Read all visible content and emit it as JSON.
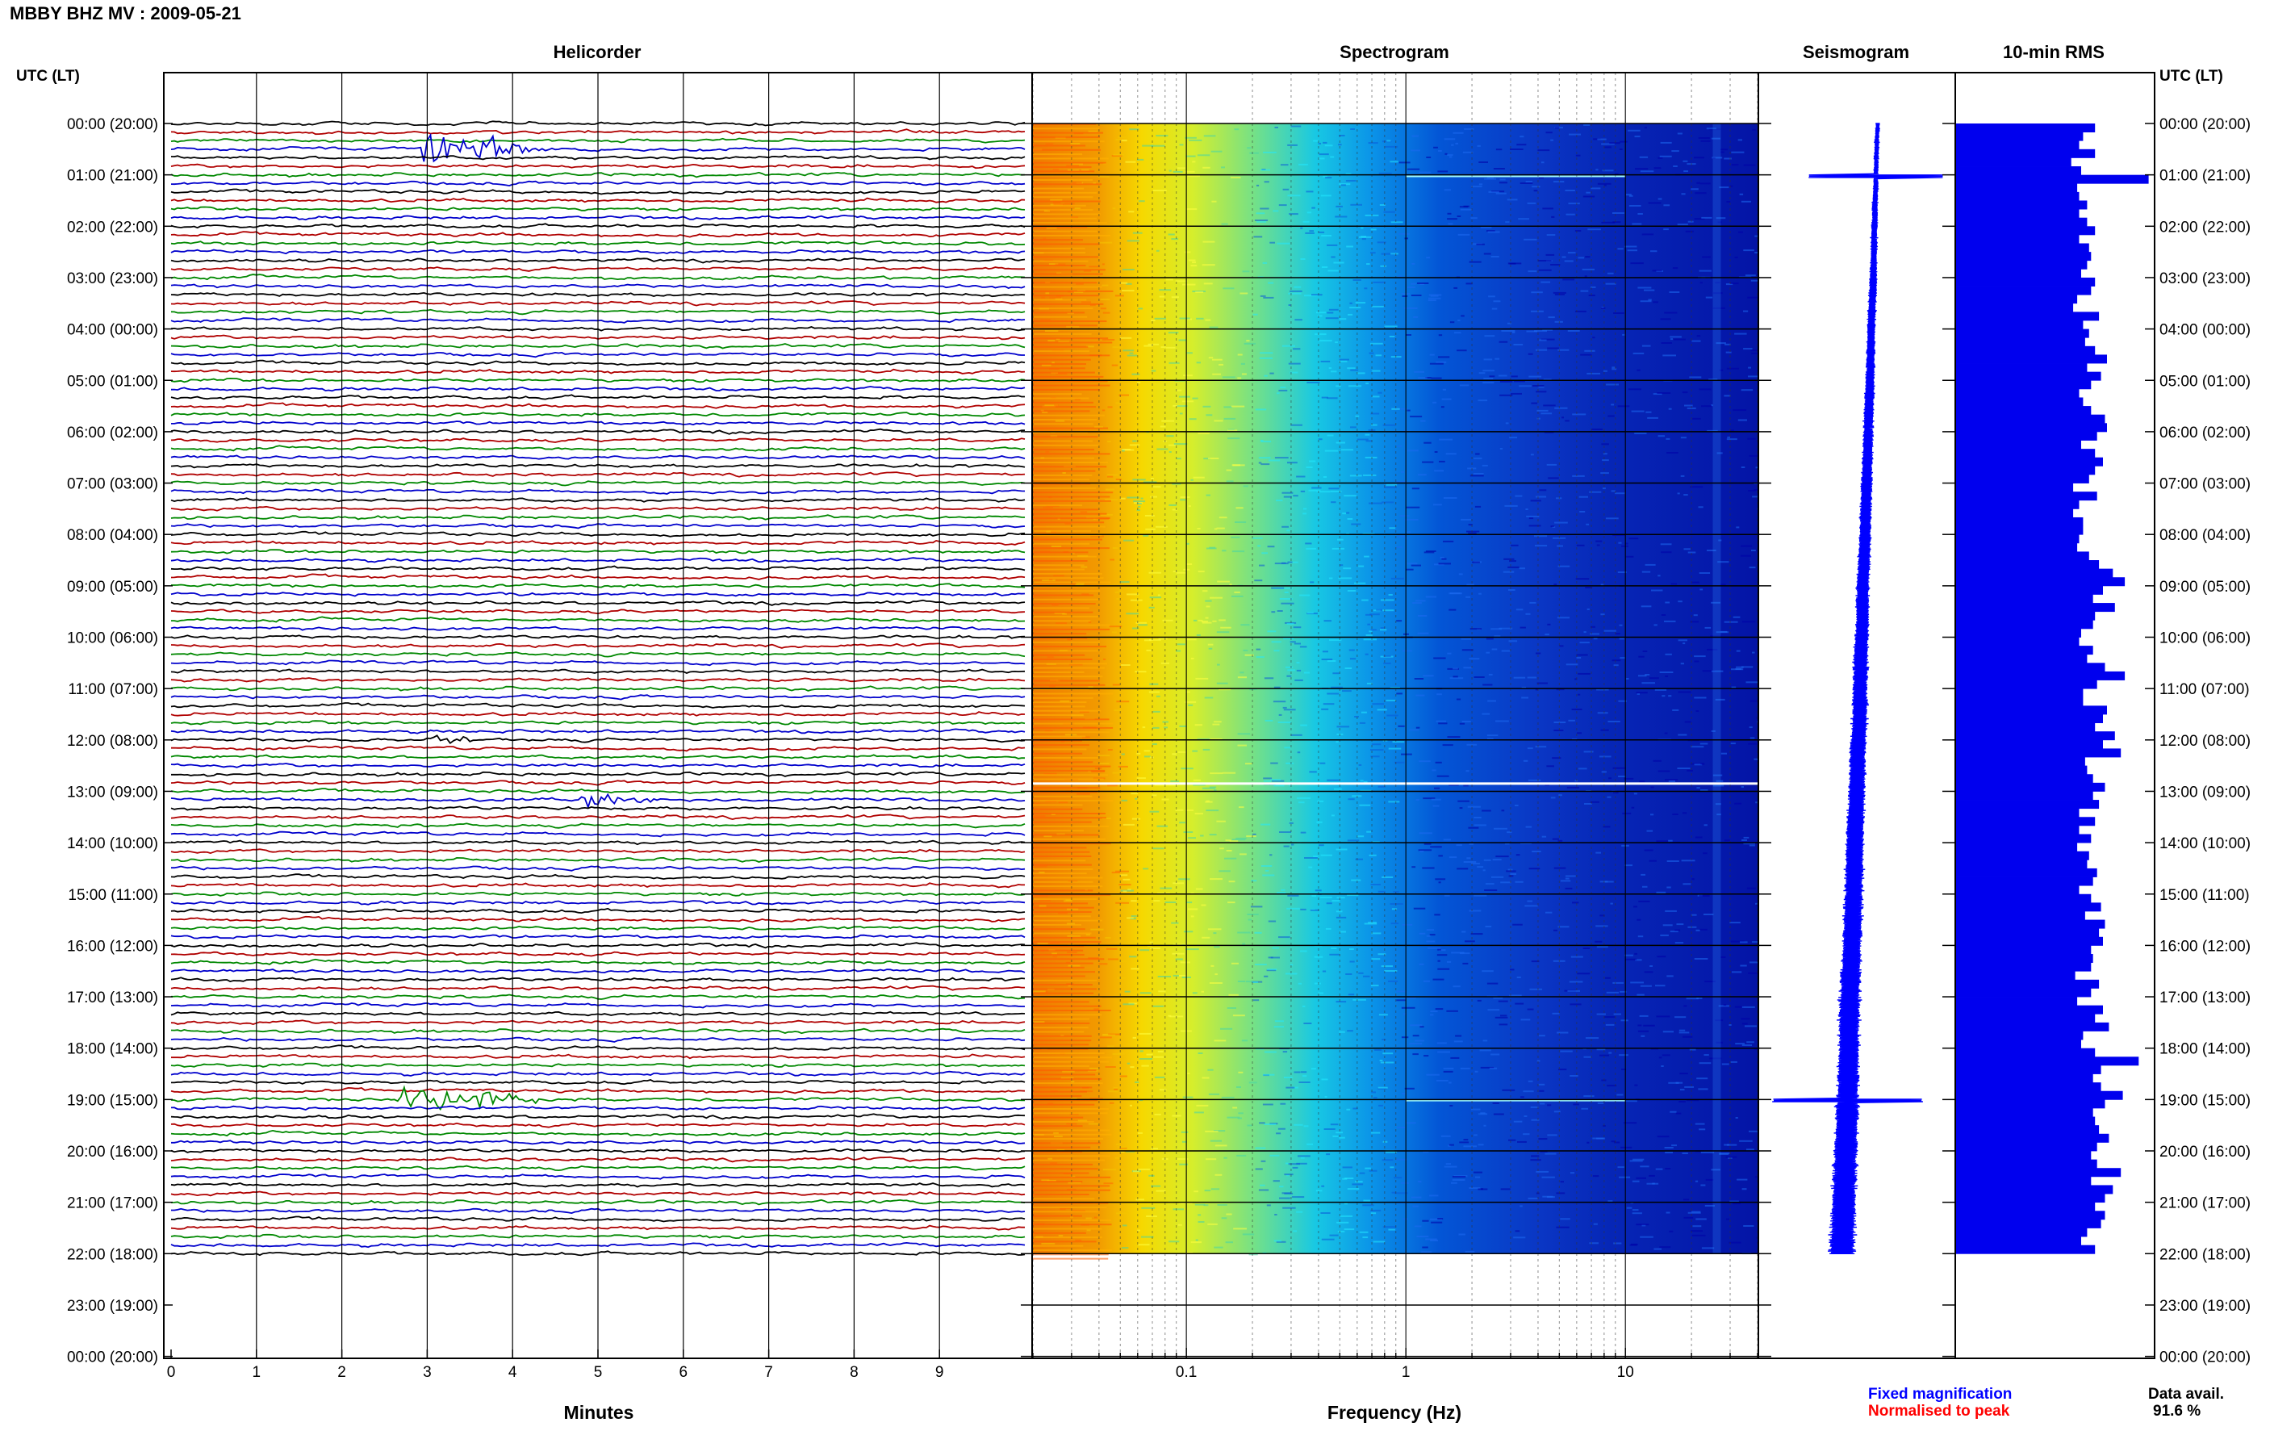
{
  "header": {
    "title": "MBBY BHZ MV : 2009-05-21",
    "utc_label_left": "UTC (LT)",
    "utc_label_right": "UTC (LT)"
  },
  "panels": {
    "helicorder_title": "Helicorder",
    "spectrogram_title": "Spectrogram",
    "seismogram_title": "Seismogram",
    "rms_title": "10-min RMS"
  },
  "footer": {
    "minutes_label": "Minutes",
    "frequency_label": "Frequency (Hz)",
    "fixed_magnification": "Fixed magnification",
    "normalised_to_peak": "Normalised to peak",
    "data_avail_label": "Data avail.",
    "data_avail_value": "91.6 %"
  },
  "colors": {
    "trace_cycle": [
      "#000000",
      "#b00000",
      "#008800",
      "#0000cc"
    ],
    "fixed_magnification": "#0000ff",
    "normalised_to_peak": "#ff0000",
    "seismogram": "#0000ff",
    "rms_bar": "#0000ee",
    "spectro_low": "#e85a00",
    "spectro_high": "#0010b0"
  },
  "chart_data": [
    {
      "type": "line",
      "name": "helicorder",
      "xlabel": "Minutes",
      "x_ticks": [
        "0",
        "1",
        "2",
        "3",
        "4",
        "5",
        "6",
        "7",
        "8",
        "9"
      ],
      "xlim": [
        0,
        10
      ],
      "hour_labels": [
        "00:00 (20:00)",
        "01:00 (21:00)",
        "02:00 (22:00)",
        "03:00 (23:00)",
        "04:00 (00:00)",
        "05:00 (01:00)",
        "06:00 (02:00)",
        "07:00 (03:00)",
        "08:00 (04:00)",
        "09:00 (05:00)",
        "10:00 (06:00)",
        "11:00 (07:00)",
        "12:00 (08:00)",
        "13:00 (09:00)",
        "14:00 (10:00)",
        "15:00 (11:00)",
        "16:00 (12:00)",
        "17:00 (13:00)",
        "18:00 (14:00)",
        "19:00 (15:00)",
        "20:00 (16:00)",
        "21:00 (17:00)",
        "22:00 (18:00)",
        "23:00 (19:00)",
        "00:00 (20:00)"
      ],
      "traces_per_hour": 6,
      "data_end_hour": 22,
      "events": [
        {
          "hour": 0.5,
          "minute_start": 2.9,
          "minute_end": 4.6,
          "amplitude": 3.2
        },
        {
          "hour": 2.95,
          "minute_start": 1.0,
          "minute_end": 1.15,
          "amplitude": 0.6
        },
        {
          "hour": 2.95,
          "minute_start": 8.3,
          "minute_end": 8.5,
          "amplitude": 0.6
        },
        {
          "hour": 12.0,
          "minute_start": 3.0,
          "minute_end": 4.0,
          "amplitude": 0.7
        },
        {
          "hour": 13.2,
          "minute_start": 4.8,
          "minute_end": 5.9,
          "amplitude": 1.2
        },
        {
          "hour": 19.0,
          "minute_start": 2.6,
          "minute_end": 4.6,
          "amplitude": 2.6
        }
      ]
    },
    {
      "type": "heatmap",
      "name": "spectrogram",
      "xlabel": "Frequency (Hz)",
      "x_scale": "log",
      "xlim": [
        0.02,
        40
      ],
      "x_ticks": [
        "0.1",
        "1",
        "10"
      ],
      "data_end_hour": 22,
      "color_gradient_low_to_high_freq": [
        "orange",
        "yellow",
        "cyan",
        "blue"
      ],
      "horizontal_artifacts_hours": [
        1.03,
        12.85,
        19.02
      ]
    },
    {
      "type": "line",
      "name": "seismogram",
      "data_end_hour": 22,
      "spikes_hours": [
        1.03,
        19.02
      ]
    },
    {
      "type": "bar",
      "name": "10-min RMS",
      "orientation": "horizontal",
      "bin_minutes": 10,
      "values": [
        0.7,
        0.64,
        0.62,
        0.7,
        0.58,
        0.63,
        0.97,
        0.61,
        0.62,
        0.66,
        0.62,
        0.66,
        0.7,
        0.62,
        0.67,
        0.68,
        0.66,
        0.63,
        0.7,
        0.68,
        0.61,
        0.59,
        0.72,
        0.64,
        0.67,
        0.65,
        0.7,
        0.76,
        0.66,
        0.73,
        0.68,
        0.62,
        0.64,
        0.68,
        0.75,
        0.76,
        0.71,
        0.63,
        0.7,
        0.74,
        0.7,
        0.67,
        0.59,
        0.71,
        0.62,
        0.59,
        0.64,
        0.64,
        0.62,
        0.61,
        0.67,
        0.72,
        0.79,
        0.85,
        0.74,
        0.69,
        0.8,
        0.7,
        0.69,
        0.63,
        0.62,
        0.69,
        0.66,
        0.75,
        0.85,
        0.71,
        0.64,
        0.64,
        0.76,
        0.74,
        0.7,
        0.8,
        0.74,
        0.83,
        0.65,
        0.66,
        0.69,
        0.75,
        0.69,
        0.72,
        0.62,
        0.7,
        0.62,
        0.68,
        0.61,
        0.67,
        0.66,
        0.71,
        0.69,
        0.62,
        0.68,
        0.73,
        0.65,
        0.75,
        0.72,
        0.74,
        0.68,
        0.69,
        0.68,
        0.6,
        0.72,
        0.68,
        0.61,
        0.74,
        0.7,
        0.77,
        0.64,
        0.63,
        0.7,
        0.92,
        0.73,
        0.69,
        0.73,
        0.84,
        0.75,
        0.69,
        0.7,
        0.72,
        0.77,
        0.71,
        0.68,
        0.71,
        0.83,
        0.68,
        0.79,
        0.75,
        0.7,
        0.75,
        0.73,
        0.66,
        0.63,
        0.7
      ]
    }
  ]
}
